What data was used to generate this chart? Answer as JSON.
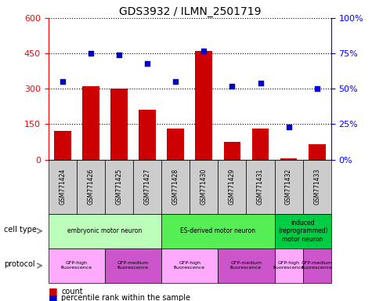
{
  "title": "GDS3932 / ILMN_2501719",
  "samples": [
    "GSM771424",
    "GSM771426",
    "GSM771425",
    "GSM771427",
    "GSM771428",
    "GSM771430",
    "GSM771429",
    "GSM771431",
    "GSM771432",
    "GSM771433"
  ],
  "counts": [
    120,
    310,
    300,
    210,
    130,
    460,
    75,
    130,
    5,
    65
  ],
  "percentiles": [
    55,
    75,
    74,
    68,
    55,
    77,
    52,
    54,
    23,
    50
  ],
  "ylim_left": [
    0,
    600
  ],
  "ylim_right": [
    0,
    100
  ],
  "yticks_left": [
    0,
    150,
    300,
    450,
    600
  ],
  "yticks_right": [
    0,
    25,
    50,
    75,
    100
  ],
  "ytick_labels_right": [
    "0%",
    "25%",
    "50%",
    "75%",
    "100%"
  ],
  "bar_color": "#cc0000",
  "dot_color": "#0000cc",
  "cell_types": [
    {
      "label": "embryonic motor neuron",
      "start": 0,
      "end": 4,
      "color": "#bbffbb"
    },
    {
      "label": "ES-derived motor neuron",
      "start": 4,
      "end": 8,
      "color": "#55ee55"
    },
    {
      "label": "induced\n(reprogrammed)\nmotor neuron",
      "start": 8,
      "end": 10,
      "color": "#00cc44"
    }
  ],
  "protocols": [
    {
      "label": "GFP-high\nfluorescence",
      "start": 0,
      "end": 2,
      "color": "#ffaaff"
    },
    {
      "label": "GFP-medium\nfluorescence",
      "start": 2,
      "end": 4,
      "color": "#cc55cc"
    },
    {
      "label": "GFP-high\nfluorescence",
      "start": 4,
      "end": 6,
      "color": "#ffaaff"
    },
    {
      "label": "GFP-medium\nfluorescence",
      "start": 6,
      "end": 8,
      "color": "#cc55cc"
    },
    {
      "label": "GFP-high\nfluorescence",
      "start": 8,
      "end": 9,
      "color": "#ffaaff"
    },
    {
      "label": "GFP-medium\nfluorescence",
      "start": 9,
      "end": 10,
      "color": "#cc55cc"
    }
  ],
  "sample_bg_color": "#cccccc",
  "legend_count_label": "count",
  "legend_pct_label": "percentile rank within the sample",
  "cell_type_row_label": "cell type",
  "protocol_row_label": "protocol"
}
